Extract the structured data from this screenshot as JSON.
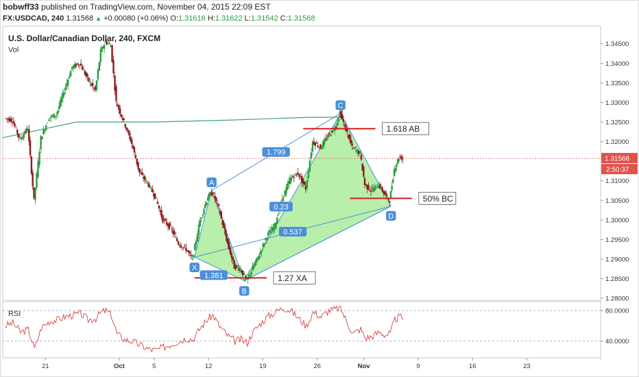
{
  "header": {
    "author": "bobwff33",
    "published_text": "published on TradingView.com, November 04, 2015 22:09 EST",
    "symbol": "FX:USDCAD, 240",
    "last": "1.31568",
    "change_prefix": "+0.00080 (+0.06%)",
    "o_label": "O:",
    "o_value": "1.31616",
    "h_label": "H:",
    "h_value": "1.31622",
    "l_label": "L:",
    "l_value": "1.31542",
    "c_label": "C:",
    "c_value": "1.31568"
  },
  "colors": {
    "up": "#2a9a3e",
    "down": "#8a1c1c",
    "pattern_fill": "#b7efab",
    "pattern_line": "#4a90d9",
    "level_line": "#d81b1b",
    "ma_line": "#3aa57a",
    "rsi_line": "#d94040",
    "price_tag": "#e0524a"
  },
  "chart_data": {
    "type": "candlestick",
    "title": "U.S. Dollar/Canadian Dollar, 240, FXCM",
    "volume_label": "Vol",
    "y_axis": {
      "ylim": [
        1.2795,
        1.3495
      ],
      "ticks": [
        "1.34500",
        "1.34000",
        "1.33500",
        "1.33000",
        "1.32500",
        "1.32000",
        "1.31000",
        "1.30500",
        "1.30000",
        "1.29500",
        "1.29000",
        "1.28500",
        "1.28000"
      ],
      "tick_values": [
        1.345,
        1.34,
        1.335,
        1.33,
        1.325,
        1.32,
        1.31,
        1.305,
        1.3,
        1.295,
        1.29,
        1.285,
        1.28
      ]
    },
    "x_axis": {
      "ticks": [
        "21",
        "Oct",
        "5",
        "12",
        "19",
        "26",
        "Nov",
        "9",
        "16",
        "23"
      ],
      "tick_days": [
        21,
        30.5,
        35,
        42,
        49,
        56,
        62,
        69,
        76,
        83
      ],
      "xlim_days": [
        15.5,
        92.5
      ]
    },
    "current_price_tag": "1.31568",
    "countdown_tag": "2:50:37",
    "price_path": [
      [
        15.8,
        1.326
      ],
      [
        16.8,
        1.3255
      ],
      [
        17.8,
        1.3205
      ],
      [
        18.8,
        1.3235
      ],
      [
        19.6,
        1.305
      ],
      [
        20.5,
        1.321
      ],
      [
        21.5,
        1.326
      ],
      [
        22.5,
        1.327
      ],
      [
        23.5,
        1.333
      ],
      [
        24.5,
        1.339
      ],
      [
        25.5,
        1.34
      ],
      [
        26.5,
        1.336
      ],
      [
        27.5,
        1.333
      ],
      [
        28.2,
        1.343
      ],
      [
        28.8,
        1.3455
      ],
      [
        29.5,
        1.3445
      ],
      [
        30.2,
        1.33
      ],
      [
        31.2,
        1.325
      ],
      [
        32.2,
        1.3195
      ],
      [
        33.2,
        1.312
      ],
      [
        34.2,
        1.3095
      ],
      [
        35.2,
        1.306
      ],
      [
        36.2,
        1.3
      ],
      [
        37.2,
        1.298
      ],
      [
        38.2,
        1.294
      ],
      [
        39.2,
        1.2925
      ],
      [
        40.0,
        1.29
      ],
      [
        41.0,
        1.3
      ],
      [
        42.0,
        1.306
      ],
      [
        42.6,
        1.307
      ],
      [
        43.4,
        1.303
      ],
      [
        44.4,
        1.295
      ],
      [
        45.4,
        1.288
      ],
      [
        46.2,
        1.2875
      ],
      [
        47.0,
        1.2845
      ],
      [
        47.6,
        1.287
      ],
      [
        48.6,
        1.291
      ],
      [
        49.6,
        1.296
      ],
      [
        50.6,
        1.2985
      ],
      [
        51.6,
        1.3055
      ],
      [
        52.6,
        1.3105
      ],
      [
        53.6,
        1.312
      ],
      [
        54.6,
        1.308
      ],
      [
        55.5,
        1.32
      ],
      [
        56.5,
        1.3185
      ],
      [
        57.5,
        1.3215
      ],
      [
        58.5,
        1.324
      ],
      [
        59.0,
        1.3275
      ],
      [
        59.6,
        1.324
      ],
      [
        60.6,
        1.3185
      ],
      [
        61.6,
        1.317
      ],
      [
        62.2,
        1.309
      ],
      [
        63.0,
        1.3075
      ],
      [
        64.0,
        1.309
      ],
      [
        64.8,
        1.3065
      ],
      [
        65.4,
        1.305
      ],
      [
        66.0,
        1.313
      ],
      [
        66.6,
        1.316
      ],
      [
        67.1,
        1.3157
      ]
    ],
    "moving_average": [
      [
        15.5,
        1.321
      ],
      [
        25,
        1.325
      ],
      [
        35,
        1.325
      ],
      [
        45,
        1.3255
      ],
      [
        55,
        1.3262
      ],
      [
        59,
        1.3262
      ]
    ],
    "harmonic_pattern": {
      "points": {
        "X": [
          40.2,
          1.2905
        ],
        "A": [
          42.4,
          1.3075
        ],
        "B": [
          46.6,
          1.2845
        ],
        "C": [
          59.0,
          1.3272
        ],
        "D": [
          65.5,
          1.3035
        ]
      },
      "ratios": [
        "1.799",
        "0.23",
        "0.537",
        "1.381"
      ],
      "levels": [
        {
          "label": "1.618 AB",
          "value": 1.3233,
          "from_day": 54.2,
          "to_day": 63.5
        },
        {
          "label": "50% BC",
          "value": 1.3055,
          "from_day": 60.2,
          "to_day": 68.2
        },
        {
          "label": "1.27 XA",
          "value": 1.2852,
          "from_day": 40.2,
          "to_day": 49.5
        }
      ]
    },
    "rsi": {
      "label": "RSI",
      "ticks": [
        "80.0000",
        "40.0000"
      ],
      "tick_values": [
        80,
        40
      ],
      "ylim": [
        20,
        90
      ],
      "values": [
        [
          15.8,
          60
        ],
        [
          16.8,
          64
        ],
        [
          17.8,
          52
        ],
        [
          18.8,
          55
        ],
        [
          19.6,
          30
        ],
        [
          20.5,
          58
        ],
        [
          21.5,
          66
        ],
        [
          22.5,
          68
        ],
        [
          23.5,
          72
        ],
        [
          24.5,
          74
        ],
        [
          25.5,
          76
        ],
        [
          26.5,
          68
        ],
        [
          27.5,
          70
        ],
        [
          28.2,
          78
        ],
        [
          28.8,
          80
        ],
        [
          29.5,
          74
        ],
        [
          30.2,
          50
        ],
        [
          31.2,
          42
        ],
        [
          32.2,
          40
        ],
        [
          33.2,
          35
        ],
        [
          34.2,
          30
        ],
        [
          35.2,
          28
        ],
        [
          36.2,
          32
        ],
        [
          37.2,
          36
        ],
        [
          38.2,
          40
        ],
        [
          39.2,
          44
        ],
        [
          40.0,
          42
        ],
        [
          41.0,
          58
        ],
        [
          42.0,
          70
        ],
        [
          42.6,
          74
        ],
        [
          43.4,
          60
        ],
        [
          44.4,
          48
        ],
        [
          45.4,
          40
        ],
        [
          46.2,
          42
        ],
        [
          47.0,
          38
        ],
        [
          47.6,
          50
        ],
        [
          48.6,
          62
        ],
        [
          49.6,
          72
        ],
        [
          50.6,
          78
        ],
        [
          51.6,
          84
        ],
        [
          52.6,
          80
        ],
        [
          53.6,
          70
        ],
        [
          54.6,
          60
        ],
        [
          55.5,
          78
        ],
        [
          56.5,
          72
        ],
        [
          57.5,
          80
        ],
        [
          58.5,
          82
        ],
        [
          59.0,
          84
        ],
        [
          59.6,
          70
        ],
        [
          60.6,
          50
        ],
        [
          61.6,
          56
        ],
        [
          62.2,
          44
        ],
        [
          63.0,
          46
        ],
        [
          64.0,
          52
        ],
        [
          64.8,
          48
        ],
        [
          65.4,
          50
        ],
        [
          66.0,
          68
        ],
        [
          66.6,
          72
        ],
        [
          67.1,
          69
        ]
      ]
    }
  }
}
